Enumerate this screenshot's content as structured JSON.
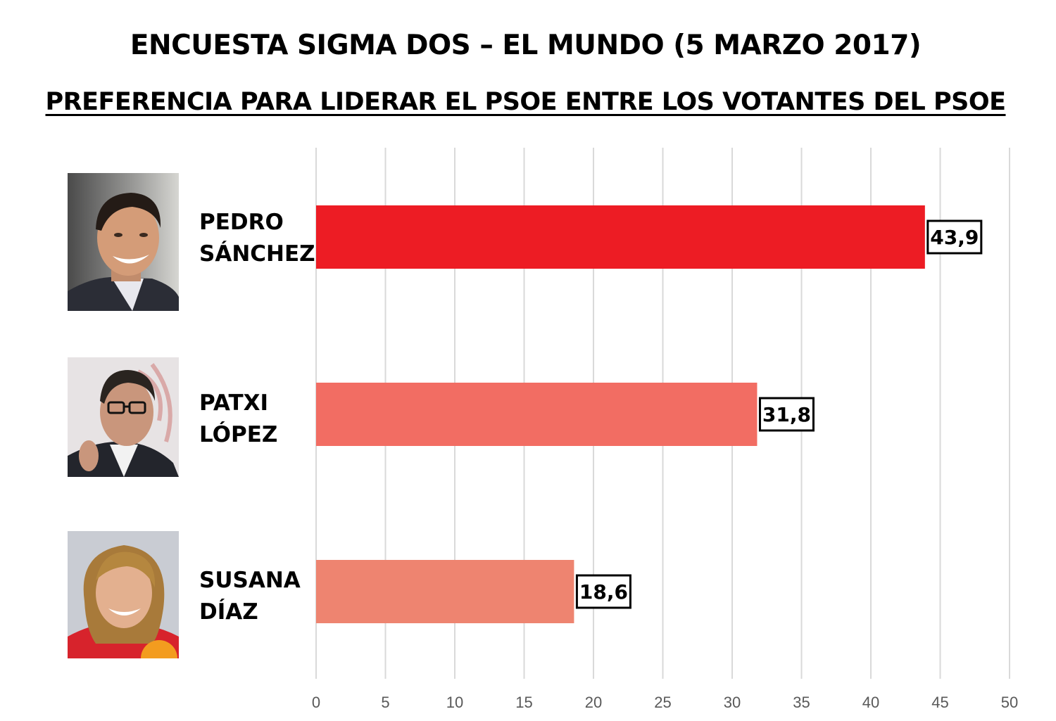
{
  "title": "ENCUESTA SIGMA DOS – EL MUNDO (5 MARZO 2017)",
  "subtitle": "PREFERENCIA PARA LIDERAR EL PSOE ENTRE LOS VOTANTES DEL PSOE",
  "chart_data": {
    "type": "bar",
    "orientation": "horizontal",
    "categories": [
      {
        "line1": "PEDRO",
        "line2": "SÁNCHEZ"
      },
      {
        "line1": "PATXI",
        "line2": "LÓPEZ"
      },
      {
        "line1": "SUSANA",
        "line2": "DÍAZ"
      }
    ],
    "values": [
      43.9,
      31.8,
      18.6
    ],
    "data_labels": [
      "43,9",
      "31,8",
      "18,6"
    ],
    "bar_colors": [
      "#ed1c24",
      "#f26d63",
      "#ee8470"
    ],
    "xlim": [
      0,
      50
    ],
    "xticks": [
      0,
      5,
      10,
      15,
      20,
      25,
      30,
      35,
      40,
      45,
      50
    ],
    "grid": true,
    "legend": "none"
  },
  "photos": [
    {
      "icon": "portrait-pedro-sanchez-icon"
    },
    {
      "icon": "portrait-patxi-lopez-icon"
    },
    {
      "icon": "portrait-susana-diaz-icon"
    }
  ]
}
